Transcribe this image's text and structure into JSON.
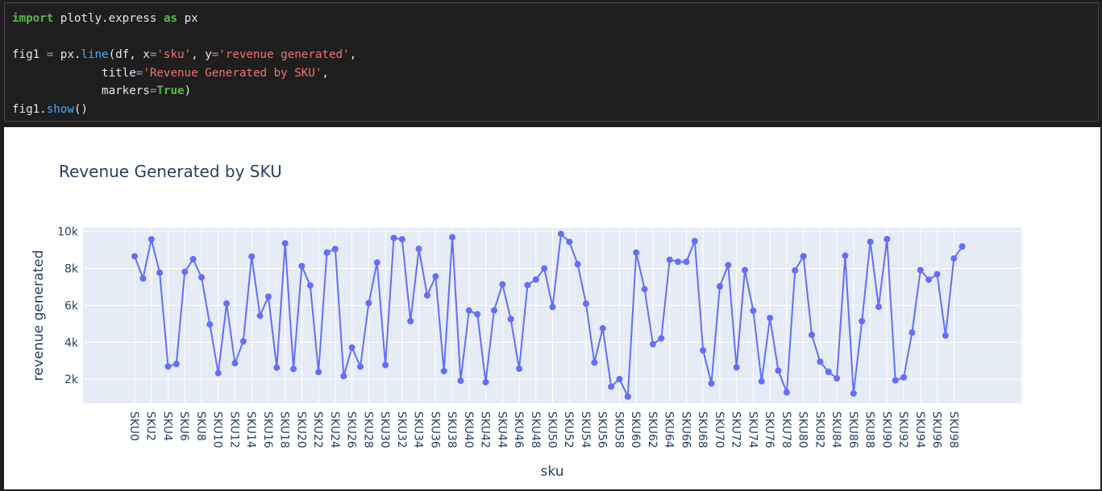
{
  "code": {
    "import_kw": "import",
    "module": "plotly.express",
    "as_kw": "as",
    "alias": "px",
    "line2_var": "fig1",
    "line2_eq": " = ",
    "line2_obj": "px.",
    "line2_fn": "line",
    "line2_args_a": "(df, x",
    "line2_eq2": "=",
    "line2_str1": "'sku'",
    "line2_args_b": ", y",
    "line2_eq3": "=",
    "line2_str2": "'revenue generated'",
    "line2_end": ",",
    "line3_indent": "             ",
    "line3_param": "title",
    "line3_eq": "=",
    "line3_str": "'Revenue Generated by SKU'",
    "line3_end": ",",
    "line4_indent": "             ",
    "line4_param": "markers",
    "line4_eq": "=",
    "line4_val": "True",
    "line4_end": ")",
    "line5_obj": "fig1.",
    "line5_fn": "show",
    "line5_end": "()"
  },
  "colors": {
    "line": "#636efa",
    "plot_bg": "#e5ecf6",
    "grid": "#ffffff",
    "text": "#2a3f5f"
  },
  "chart_data": {
    "type": "line",
    "title": "Revenue Generated by SKU",
    "xlabel": "sku",
    "ylabel": "revenue generated",
    "markers": true,
    "ylim": [
      700,
      10200
    ],
    "yticks": [
      2000,
      4000,
      6000,
      8000,
      10000
    ],
    "ytick_labels": [
      "2k",
      "4k",
      "6k",
      "8k",
      "10k"
    ],
    "xtick_labels": [
      "SKU0",
      "SKU2",
      "SKU4",
      "SKU6",
      "SKU8",
      "SKU10",
      "SKU12",
      "SKU14",
      "SKU16",
      "SKU18",
      "SKU20",
      "SKU22",
      "SKU24",
      "SKU26",
      "SKU28",
      "SKU30",
      "SKU32",
      "SKU34",
      "SKU36",
      "SKU38",
      "SKU40",
      "SKU42",
      "SKU44",
      "SKU46",
      "SKU48",
      "SKU50",
      "SKU52",
      "SKU54",
      "SKU56",
      "SKU58",
      "SKU60",
      "SKU62",
      "SKU64",
      "SKU66",
      "SKU68",
      "SKU70",
      "SKU72",
      "SKU74",
      "SKU76",
      "SKU78",
      "SKU80",
      "SKU82",
      "SKU84",
      "SKU86",
      "SKU88",
      "SKU90",
      "SKU92",
      "SKU94",
      "SKU96",
      "SKU98"
    ],
    "values": [
      8660,
      7460,
      9580,
      7770,
      2690,
      2830,
      7820,
      8500,
      7520,
      4970,
      2330,
      6100,
      2870,
      4050,
      8650,
      5440,
      6470,
      2630,
      9360,
      2560,
      8130,
      7080,
      2390,
      8860,
      9050,
      2170,
      3720,
      2680,
      6120,
      8320,
      2770,
      9650,
      9580,
      5150,
      9060,
      6540,
      7570,
      2440,
      9690,
      1920,
      5720,
      5520,
      1840,
      5730,
      7140,
      5260,
      2570,
      7100,
      7400,
      8000,
      5910,
      9870,
      9440,
      8230,
      6090,
      2900,
      4760,
      1600,
      2010,
      1060,
      8860,
      6880,
      3900,
      4210,
      8470,
      8360,
      8360,
      9480,
      3560,
      1770,
      7030,
      8180,
      2640,
      7910,
      5710,
      1890,
      5320,
      2470,
      1290,
      7890,
      8660,
      4400,
      2950,
      2400,
      2050,
      8690,
      1230,
      5140,
      9440,
      5920,
      9590,
      1940,
      2100,
      4530,
      7910,
      7390,
      7690,
      4370,
      8540,
      9190
    ]
  }
}
